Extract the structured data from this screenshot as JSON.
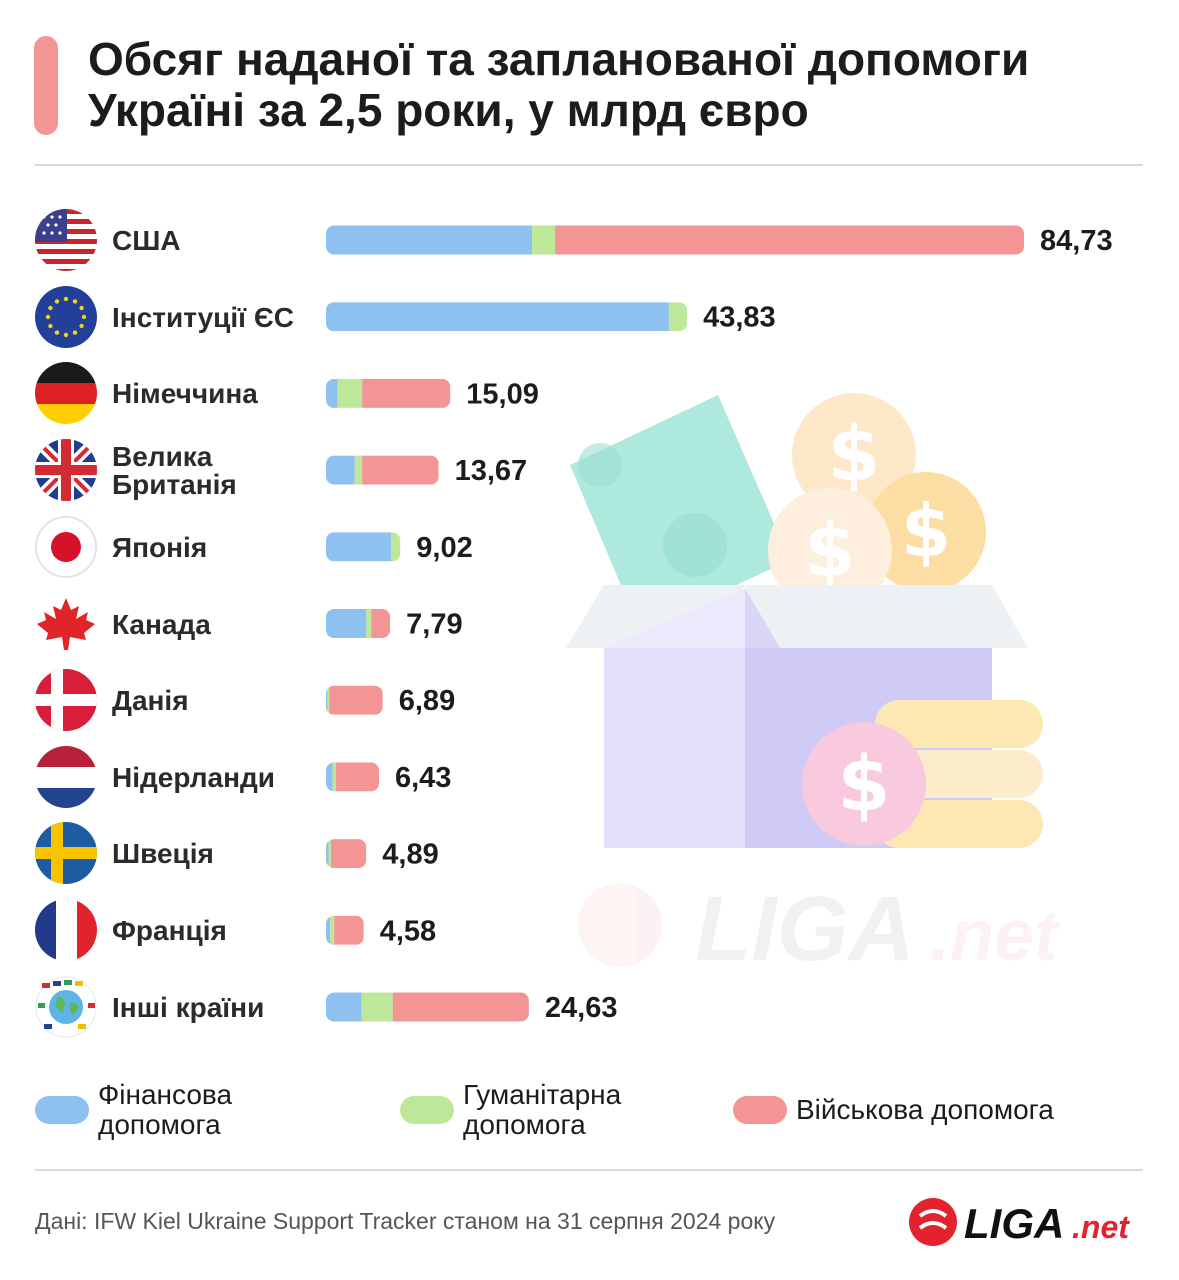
{
  "title": "Обсяг наданої та запланованої допомоги Україні за 2,5 роки, у млрд євро",
  "colors": {
    "financial": "#8ec1f0",
    "humanitarian": "#bde89a",
    "military": "#f29594",
    "accent": "#f29594",
    "logo_red": "#e4222d"
  },
  "rows": [
    {
      "name": "США",
      "flag": "us-flag-icon"
    },
    {
      "name": "Інституції ЄС",
      "flag": "eu-flag-icon"
    },
    {
      "name": "Німеччина",
      "flag": "germany-flag-icon"
    },
    {
      "name": "Велика Британія",
      "name_lines": [
        "Велика",
        "Британія"
      ],
      "flag": "uk-flag-icon"
    },
    {
      "name": "Японія",
      "flag": "japan-flag-icon"
    },
    {
      "name": "Канада",
      "flag": "canada-flag-icon"
    },
    {
      "name": "Данія",
      "flag": "denmark-flag-icon"
    },
    {
      "name": "Нідерланди",
      "flag": "netherlands-flag-icon"
    },
    {
      "name": "Швеція",
      "flag": "sweden-flag-icon"
    },
    {
      "name": "Франція",
      "flag": "france-flag-icon"
    },
    {
      "name": "Інші країни",
      "flag": "world-flags-icon"
    }
  ],
  "chart_data": {
    "type": "bar",
    "orientation": "horizontal",
    "stacked": true,
    "categories": [
      "США",
      "Інституції ЄС",
      "Німеччина",
      "Велика Британія",
      "Японія",
      "Канада",
      "Данія",
      "Нідерланди",
      "Швеція",
      "Франція",
      "Інші країни"
    ],
    "series": [
      {
        "name": "Фінансова допомога",
        "values": [
          25.0,
          41.6,
          1.4,
          3.5,
          7.9,
          4.9,
          0.2,
          0.8,
          0.3,
          0.5,
          4.3
        ]
      },
      {
        "name": "Гуманітарна допомога",
        "values": [
          2.8,
          2.2,
          3.0,
          0.9,
          1.1,
          0.6,
          0.2,
          0.4,
          0.3,
          0.5,
          3.8
        ]
      },
      {
        "name": "Військова допомога",
        "values": [
          56.9,
          0.0,
          10.7,
          9.3,
          0.0,
          2.3,
          6.5,
          5.2,
          4.3,
          3.6,
          16.5
        ]
      }
    ],
    "totals": [
      "84,73",
      "43,83",
      "15,09",
      "13,67",
      "9,02",
      "7,79",
      "6,89",
      "6,43",
      "4,89",
      "4,58",
      "24,63"
    ],
    "totals_numeric": [
      84.73,
      43.83,
      15.09,
      13.67,
      9.02,
      7.79,
      6.89,
      6.43,
      4.89,
      4.58,
      24.63
    ],
    "xlim": [
      0,
      84.73
    ],
    "grid": false,
    "legend": "bottom",
    "title": "Обсяг наданої та запланованої допомоги Україні за 2,5 роки, у млрд євро",
    "xlabel": "",
    "ylabel": ""
  },
  "legend": [
    {
      "label_lines": [
        "Фінансова",
        "допомога"
      ],
      "color_key": "financial"
    },
    {
      "label_lines": [
        "Гуманітарна",
        "допомога"
      ],
      "color_key": "humanitarian"
    },
    {
      "label_lines": [
        "Військова допомога"
      ],
      "color_key": "military"
    }
  ],
  "source": "Дані: IFW Kiel Ukraine Support Tracker станом на 31 серпня 2024 року",
  "logo": {
    "text": "LIGA",
    "suffix": ".net"
  }
}
